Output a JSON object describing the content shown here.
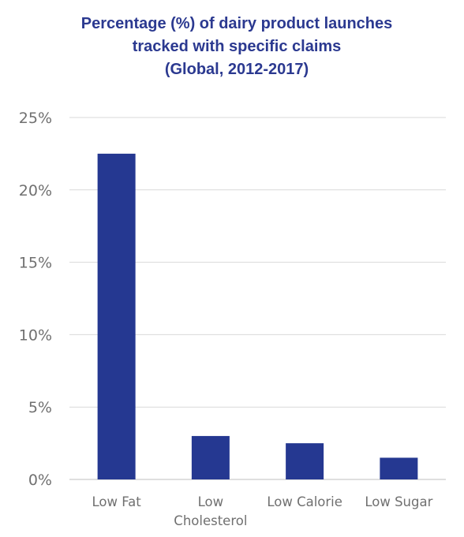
{
  "chart_data": {
    "type": "bar",
    "title_lines": [
      "Percentage (%) of dairy product launches",
      "tracked with specific claims",
      "(Global, 2012-2017)"
    ],
    "xlabel": "",
    "ylabel": "",
    "categories": [
      [
        "Low Fat"
      ],
      [
        "Low",
        "Cholesterol"
      ],
      [
        "Low Calorie"
      ],
      [
        "Low Sugar"
      ]
    ],
    "values": [
      22.5,
      3.0,
      2.5,
      1.5
    ],
    "ylim": [
      0,
      25
    ],
    "yticks": [
      0,
      5,
      10,
      15,
      20,
      25
    ],
    "ytick_labels": [
      "0%",
      "5%",
      "10%",
      "15%",
      "20%",
      "25%"
    ],
    "grid": true,
    "legend": "none",
    "colors": {
      "bar": "#253891",
      "title": "#2b3990",
      "grid": "#d9d9d9",
      "tick_text": "#707070"
    }
  }
}
